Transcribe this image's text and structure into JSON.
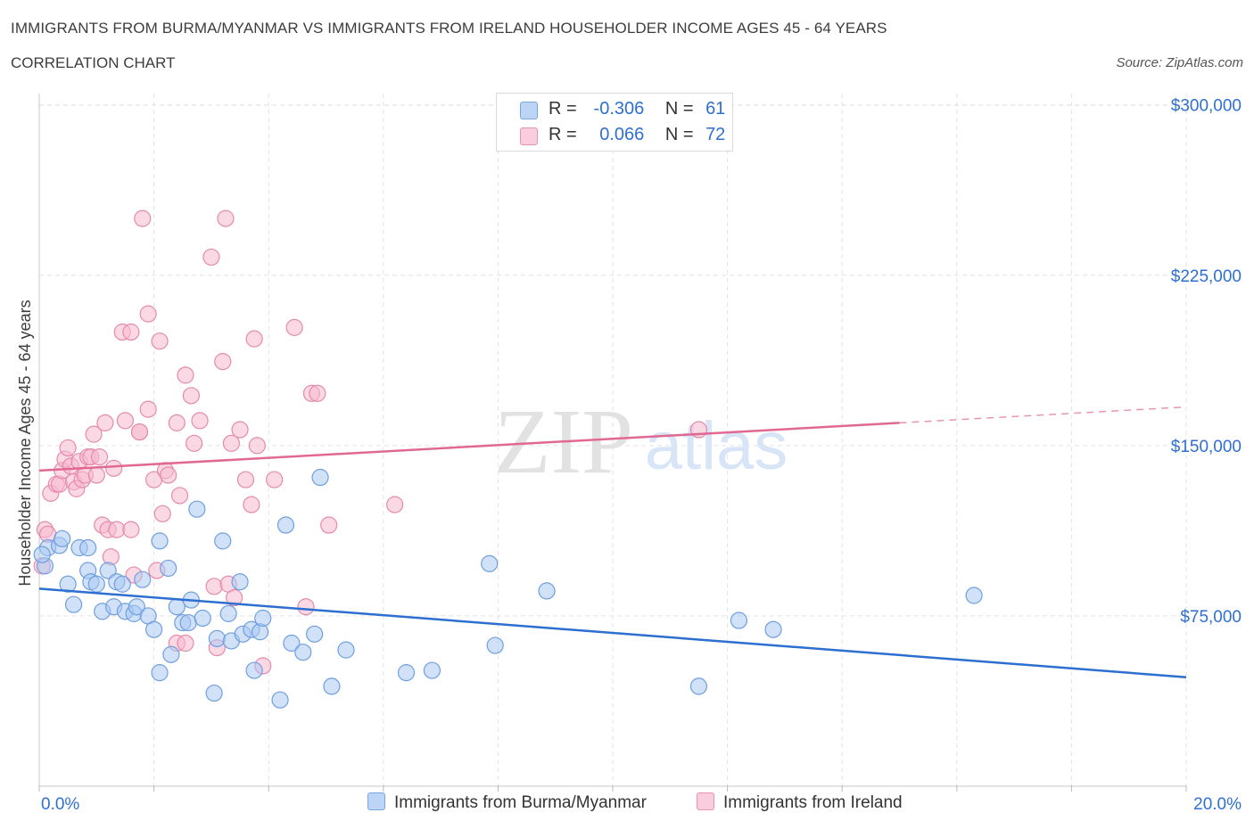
{
  "title": "IMMIGRANTS FROM BURMA/MYANMAR VS IMMIGRANTS FROM IRELAND HOUSEHOLDER INCOME AGES 45 - 64 YEARS",
  "subtitle": "CORRELATION CHART",
  "source": "Source: ZipAtlas.com",
  "watermark": {
    "zip": "ZIP",
    "atlas": "atlas"
  },
  "legend": {
    "r_label": "R =",
    "n_label": "N =",
    "rows": [
      {
        "r": "-0.306",
        "n": "61"
      },
      {
        "r": "0.066",
        "n": "72"
      }
    ]
  },
  "colors": {
    "blue_fill": "#a9c8f2",
    "blue_stroke": "#6f9fe0",
    "blue_line": "#2c6fd0",
    "pink_fill": "#f6bad0",
    "pink_stroke": "#e68aab",
    "pink_line": "#e06891",
    "axis_label": "#2f6fd1",
    "grid": "#e3e3e3"
  },
  "chart_data": {
    "type": "scatter",
    "title": "IMMIGRANTS FROM BURMA/MYANMAR VS IMMIGRANTS FROM IRELAND HOUSEHOLDER INCOME AGES 45 - 64 YEARS",
    "xlabel": "",
    "ylabel": "Householder Income Ages 45 - 64 years",
    "xlim": [
      0,
      20
    ],
    "ylim": [
      0,
      305000
    ],
    "x_tick_labels": [
      "0.0%",
      "20.0%"
    ],
    "y_ticks": [
      75000,
      150000,
      225000,
      300000
    ],
    "y_tick_labels": [
      "$75,000",
      "$150,000",
      "$225,000",
      "$300,000"
    ],
    "grid": true,
    "legend_position": "top-center",
    "series": [
      {
        "name": "Immigrants from Burma/Myanmar",
        "color": "#a9c8f2",
        "trend": {
          "x": [
            0,
            20
          ],
          "y": [
            87000,
            48000
          ]
        },
        "points": [
          [
            0.1,
            97000
          ],
          [
            0.15,
            105000
          ],
          [
            0.35,
            106000
          ],
          [
            0.4,
            109000
          ],
          [
            0.5,
            89000
          ],
          [
            0.6,
            80000
          ],
          [
            0.7,
            105000
          ],
          [
            0.85,
            105000
          ],
          [
            0.85,
            95000
          ],
          [
            0.9,
            90000
          ],
          [
            1.0,
            89000
          ],
          [
            1.1,
            77000
          ],
          [
            1.2,
            95000
          ],
          [
            1.3,
            79000
          ],
          [
            1.35,
            90000
          ],
          [
            1.45,
            89000
          ],
          [
            1.5,
            77000
          ],
          [
            1.65,
            76000
          ],
          [
            1.7,
            79000
          ],
          [
            1.8,
            91000
          ],
          [
            1.9,
            75000
          ],
          [
            2.0,
            69000
          ],
          [
            2.1,
            50000
          ],
          [
            2.1,
            108000
          ],
          [
            2.25,
            96000
          ],
          [
            2.3,
            58000
          ],
          [
            2.4,
            79000
          ],
          [
            2.5,
            72000
          ],
          [
            2.6,
            72000
          ],
          [
            2.65,
            82000
          ],
          [
            2.75,
            122000
          ],
          [
            2.85,
            74000
          ],
          [
            3.05,
            41000
          ],
          [
            3.1,
            65000
          ],
          [
            3.2,
            108000
          ],
          [
            3.3,
            76000
          ],
          [
            3.35,
            64000
          ],
          [
            3.5,
            90000
          ],
          [
            3.55,
            67000
          ],
          [
            3.7,
            69000
          ],
          [
            3.75,
            51000
          ],
          [
            3.85,
            68000
          ],
          [
            3.9,
            74000
          ],
          [
            4.2,
            38000
          ],
          [
            4.3,
            115000
          ],
          [
            4.4,
            63000
          ],
          [
            4.6,
            59000
          ],
          [
            4.8,
            67000
          ],
          [
            4.9,
            136000
          ],
          [
            5.1,
            44000
          ],
          [
            5.35,
            60000
          ],
          [
            6.4,
            50000
          ],
          [
            6.85,
            51000
          ],
          [
            7.85,
            98000
          ],
          [
            7.95,
            62000
          ],
          [
            8.85,
            86000
          ],
          [
            11.5,
            44000
          ],
          [
            12.2,
            73000
          ],
          [
            12.8,
            69000
          ],
          [
            16.3,
            84000
          ],
          [
            0.05,
            102000
          ]
        ]
      },
      {
        "name": "Immigrants from Ireland",
        "color": "#f6bad0",
        "trend": {
          "x": [
            0,
            15
          ],
          "y": [
            139000,
            160000
          ]
        },
        "trend_dashed": {
          "x": [
            15,
            20
          ],
          "y": [
            160000,
            167000
          ]
        },
        "points": [
          [
            0.05,
            97000
          ],
          [
            0.1,
            113000
          ],
          [
            0.15,
            111000
          ],
          [
            0.2,
            129000
          ],
          [
            0.3,
            133000
          ],
          [
            0.35,
            133000
          ],
          [
            0.4,
            139000
          ],
          [
            0.45,
            144000
          ],
          [
            0.5,
            149000
          ],
          [
            0.55,
            141000
          ],
          [
            0.6,
            134000
          ],
          [
            0.65,
            131000
          ],
          [
            0.7,
            143000
          ],
          [
            0.75,
            135000
          ],
          [
            0.8,
            137000
          ],
          [
            0.85,
            145000
          ],
          [
            0.9,
            145000
          ],
          [
            0.95,
            155000
          ],
          [
            1.0,
            137000
          ],
          [
            1.05,
            145000
          ],
          [
            1.1,
            115000
          ],
          [
            1.15,
            160000
          ],
          [
            1.2,
            113000
          ],
          [
            1.25,
            101000
          ],
          [
            1.3,
            140000
          ],
          [
            1.35,
            113000
          ],
          [
            1.45,
            200000
          ],
          [
            1.5,
            161000
          ],
          [
            1.6,
            200000
          ],
          [
            1.6,
            113000
          ],
          [
            1.65,
            93000
          ],
          [
            1.75,
            156000
          ],
          [
            1.75,
            156000
          ],
          [
            1.8,
            250000
          ],
          [
            1.9,
            166000
          ],
          [
            1.9,
            208000
          ],
          [
            2.0,
            135000
          ],
          [
            2.05,
            95000
          ],
          [
            2.1,
            196000
          ],
          [
            2.15,
            120000
          ],
          [
            2.2,
            139000
          ],
          [
            2.25,
            137000
          ],
          [
            2.4,
            63000
          ],
          [
            2.4,
            160000
          ],
          [
            2.45,
            128000
          ],
          [
            2.55,
            63000
          ],
          [
            2.55,
            181000
          ],
          [
            2.65,
            172000
          ],
          [
            2.7,
            151000
          ],
          [
            2.8,
            161000
          ],
          [
            3.0,
            233000
          ],
          [
            3.05,
            88000
          ],
          [
            3.1,
            61000
          ],
          [
            3.2,
            187000
          ],
          [
            3.25,
            250000
          ],
          [
            3.3,
            89000
          ],
          [
            3.35,
            151000
          ],
          [
            3.4,
            83000
          ],
          [
            3.5,
            157000
          ],
          [
            3.6,
            135000
          ],
          [
            3.7,
            124000
          ],
          [
            3.75,
            197000
          ],
          [
            3.8,
            150000
          ],
          [
            3.9,
            53000
          ],
          [
            4.1,
            135000
          ],
          [
            4.45,
            202000
          ],
          [
            4.65,
            79000
          ],
          [
            4.75,
            173000
          ],
          [
            4.85,
            173000
          ],
          [
            5.05,
            115000
          ],
          [
            6.2,
            124000
          ],
          [
            11.5,
            157000
          ]
        ]
      }
    ]
  },
  "bottom_legend": [
    "Immigrants from Burma/Myanmar",
    "Immigrants from Ireland"
  ]
}
